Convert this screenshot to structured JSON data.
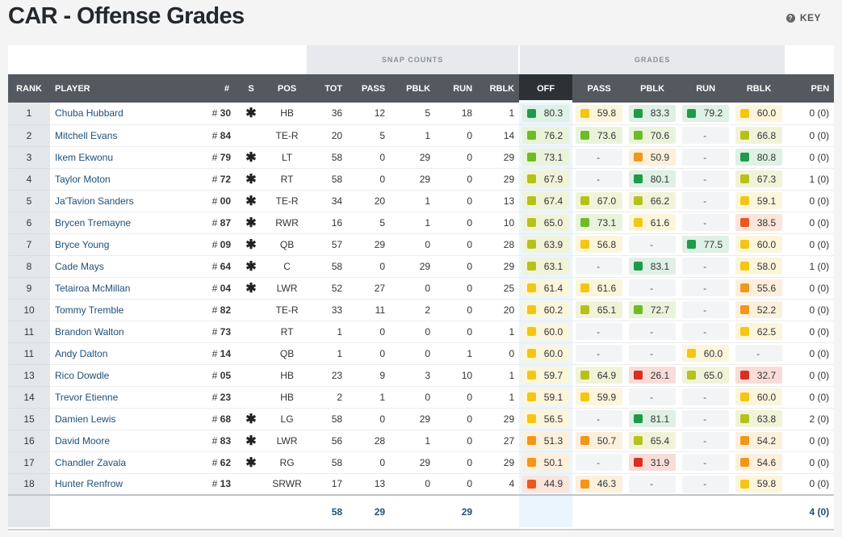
{
  "title": "CAR - Offense Grades",
  "key_label": "KEY",
  "groups": {
    "snap_counts": "SNAP COUNTS",
    "grades": "GRADES"
  },
  "headers": {
    "rank": "RANK",
    "player": "PLAYER",
    "jersey": "#",
    "starter": "S",
    "pos": "POS",
    "tot": "TOT",
    "pass": "PASS",
    "pblk": "PBLK",
    "run": "RUN",
    "rblk": "RBLK",
    "off": "OFF",
    "g_pass": "PASS",
    "g_pblk": "PBLK",
    "g_run": "RUN",
    "g_rblk": "RBLK",
    "pen": "PEN"
  },
  "colors": {
    "dark_green": "#1f9a4a",
    "light_green": "#6fbb25",
    "yellow_green": "#b5c21b",
    "yellow": "#f3c615",
    "orange": "#f2961c",
    "red_orange": "#e9591f",
    "red": "#d8301f",
    "link": "#1d4f7a"
  },
  "rows": [
    {
      "rank": "1",
      "player": "Chuba Hubbard",
      "jersey": "30",
      "starter": "✱",
      "pos": "HB",
      "tot": "36",
      "pass": "12",
      "pblk": "5",
      "run": "18",
      "rblk": "1",
      "off": "80.3",
      "g_pass": "59.8",
      "g_pblk": "83.3",
      "g_run": "79.2",
      "g_rblk": "60.0",
      "pen": "0 (0)"
    },
    {
      "rank": "2",
      "player": "Mitchell Evans",
      "jersey": "84",
      "starter": "",
      "pos": "TE-R",
      "tot": "20",
      "pass": "5",
      "pblk": "1",
      "run": "0",
      "rblk": "14",
      "off": "76.2",
      "g_pass": "73.6",
      "g_pblk": "70.6",
      "g_run": "-",
      "g_rblk": "66.8",
      "pen": "0 (0)"
    },
    {
      "rank": "3",
      "player": "Ikem Ekwonu",
      "jersey": "79",
      "starter": "✱",
      "pos": "LT",
      "tot": "58",
      "pass": "0",
      "pblk": "29",
      "run": "0",
      "rblk": "29",
      "off": "73.1",
      "g_pass": "-",
      "g_pblk": "50.9",
      "g_run": "-",
      "g_rblk": "80.8",
      "pen": "0 (0)"
    },
    {
      "rank": "4",
      "player": "Taylor Moton",
      "jersey": "72",
      "starter": "✱",
      "pos": "RT",
      "tot": "58",
      "pass": "0",
      "pblk": "29",
      "run": "0",
      "rblk": "29",
      "off": "67.9",
      "g_pass": "-",
      "g_pblk": "80.1",
      "g_run": "-",
      "g_rblk": "67.3",
      "pen": "1 (0)"
    },
    {
      "rank": "5",
      "player": "Ja'Tavion Sanders",
      "jersey": "00",
      "starter": "✱",
      "pos": "TE-R",
      "tot": "34",
      "pass": "20",
      "pblk": "1",
      "run": "0",
      "rblk": "13",
      "off": "67.4",
      "g_pass": "67.0",
      "g_pblk": "66.2",
      "g_run": "-",
      "g_rblk": "59.1",
      "pen": "0 (0)"
    },
    {
      "rank": "6",
      "player": "Brycen Tremayne",
      "jersey": "87",
      "starter": "✱",
      "pos": "RWR",
      "tot": "16",
      "pass": "5",
      "pblk": "1",
      "run": "0",
      "rblk": "10",
      "off": "65.0",
      "g_pass": "73.1",
      "g_pblk": "61.6",
      "g_run": "-",
      "g_rblk": "38.5",
      "pen": "0 (0)"
    },
    {
      "rank": "7",
      "player": "Bryce Young",
      "jersey": "09",
      "starter": "✱",
      "pos": "QB",
      "tot": "57",
      "pass": "29",
      "pblk": "0",
      "run": "0",
      "rblk": "28",
      "off": "63.9",
      "g_pass": "56.8",
      "g_pblk": "-",
      "g_run": "77.5",
      "g_rblk": "60.0",
      "pen": "0 (0)"
    },
    {
      "rank": "8",
      "player": "Cade Mays",
      "jersey": "64",
      "starter": "✱",
      "pos": "C",
      "tot": "58",
      "pass": "0",
      "pblk": "29",
      "run": "0",
      "rblk": "29",
      "off": "63.1",
      "g_pass": "-",
      "g_pblk": "83.1",
      "g_run": "-",
      "g_rblk": "58.0",
      "pen": "1 (0)"
    },
    {
      "rank": "9",
      "player": "Tetairoa McMillan",
      "jersey": "04",
      "starter": "✱",
      "pos": "LWR",
      "tot": "52",
      "pass": "27",
      "pblk": "0",
      "run": "0",
      "rblk": "25",
      "off": "61.4",
      "g_pass": "61.6",
      "g_pblk": "-",
      "g_run": "-",
      "g_rblk": "55.6",
      "pen": "0 (0)"
    },
    {
      "rank": "10",
      "player": "Tommy Tremble",
      "jersey": "82",
      "starter": "",
      "pos": "TE-R",
      "tot": "33",
      "pass": "11",
      "pblk": "2",
      "run": "0",
      "rblk": "20",
      "off": "60.2",
      "g_pass": "65.1",
      "g_pblk": "72.7",
      "g_run": "-",
      "g_rblk": "52.2",
      "pen": "0 (0)"
    },
    {
      "rank": "11",
      "player": "Brandon Walton",
      "jersey": "73",
      "starter": "",
      "pos": "RT",
      "tot": "1",
      "pass": "0",
      "pblk": "0",
      "run": "0",
      "rblk": "1",
      "off": "60.0",
      "g_pass": "-",
      "g_pblk": "-",
      "g_run": "-",
      "g_rblk": "62.5",
      "pen": "0 (0)"
    },
    {
      "rank": "11",
      "player": "Andy Dalton",
      "jersey": "14",
      "starter": "",
      "pos": "QB",
      "tot": "1",
      "pass": "0",
      "pblk": "0",
      "run": "1",
      "rblk": "0",
      "off": "60.0",
      "g_pass": "-",
      "g_pblk": "-",
      "g_run": "60.0",
      "g_rblk": "-",
      "pen": "0 (0)"
    },
    {
      "rank": "13",
      "player": "Rico Dowdle",
      "jersey": "05",
      "starter": "",
      "pos": "HB",
      "tot": "23",
      "pass": "9",
      "pblk": "3",
      "run": "10",
      "rblk": "1",
      "off": "59.7",
      "g_pass": "64.9",
      "g_pblk": "26.1",
      "g_run": "65.0",
      "g_rblk": "32.7",
      "pen": "0 (0)"
    },
    {
      "rank": "14",
      "player": "Trevor Etienne",
      "jersey": "23",
      "starter": "",
      "pos": "HB",
      "tot": "2",
      "pass": "1",
      "pblk": "0",
      "run": "0",
      "rblk": "1",
      "off": "59.1",
      "g_pass": "59.9",
      "g_pblk": "-",
      "g_run": "-",
      "g_rblk": "60.0",
      "pen": "0 (0)"
    },
    {
      "rank": "15",
      "player": "Damien Lewis",
      "jersey": "68",
      "starter": "✱",
      "pos": "LG",
      "tot": "58",
      "pass": "0",
      "pblk": "29",
      "run": "0",
      "rblk": "29",
      "off": "56.5",
      "g_pass": "-",
      "g_pblk": "81.1",
      "g_run": "-",
      "g_rblk": "63.8",
      "pen": "2 (0)"
    },
    {
      "rank": "16",
      "player": "David Moore",
      "jersey": "83",
      "starter": "✱",
      "pos": "LWR",
      "tot": "56",
      "pass": "28",
      "pblk": "1",
      "run": "0",
      "rblk": "27",
      "off": "51.3",
      "g_pass": "50.7",
      "g_pblk": "65.4",
      "g_run": "-",
      "g_rblk": "54.2",
      "pen": "0 (0)"
    },
    {
      "rank": "17",
      "player": "Chandler Zavala",
      "jersey": "62",
      "starter": "✱",
      "pos": "RG",
      "tot": "58",
      "pass": "0",
      "pblk": "29",
      "run": "0",
      "rblk": "29",
      "off": "50.1",
      "g_pass": "-",
      "g_pblk": "31.9",
      "g_run": "-",
      "g_rblk": "54.6",
      "pen": "0 (0)"
    },
    {
      "rank": "18",
      "player": "Hunter Renfrow",
      "jersey": "13",
      "starter": "",
      "pos": "SRWR",
      "tot": "17",
      "pass": "13",
      "pblk": "0",
      "run": "0",
      "rblk": "4",
      "off": "44.9",
      "g_pass": "46.3",
      "g_pblk": "-",
      "g_run": "-",
      "g_rblk": "59.8",
      "pen": "0 (0)"
    }
  ],
  "totals": {
    "tot": "58",
    "pass": "29",
    "run": "29",
    "pen": "4 (0)"
  }
}
